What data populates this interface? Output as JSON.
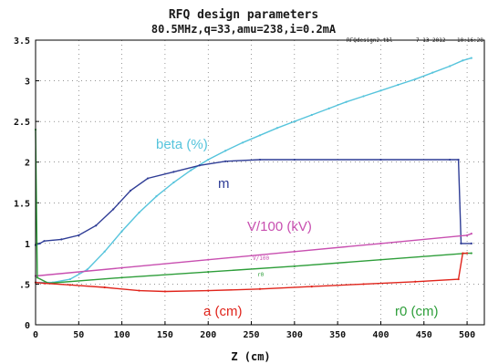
{
  "chart_data": {
    "type": "line",
    "title": "RFQ design parameters",
    "subtitle": "80.5MHz,q=33,amu=238,i=0.2mA",
    "stamp_file": "RFQdesign2.tbl",
    "stamp_date": "7-13-2012",
    "stamp_time": "10:16:28",
    "xlabel": "Z (cm)",
    "ylabel": "",
    "xlim": [
      0,
      520
    ],
    "ylim": [
      0,
      3.5
    ],
    "xticks": [
      "0",
      "50",
      "100",
      "150",
      "200",
      "250",
      "300",
      "350",
      "400",
      "450",
      "500"
    ],
    "yticks": [
      "0",
      ".5",
      "1",
      "1.5",
      "2",
      "2.5",
      "3",
      "3.5"
    ],
    "grid": true,
    "series": [
      {
        "name": "beta (%)",
        "color": "#56c4dc",
        "points": [
          [
            0,
            0.52
          ],
          [
            20,
            0.52
          ],
          [
            40,
            0.56
          ],
          [
            60,
            0.68
          ],
          [
            80,
            0.9
          ],
          [
            100,
            1.15
          ],
          [
            120,
            1.38
          ],
          [
            140,
            1.58
          ],
          [
            160,
            1.75
          ],
          [
            180,
            1.9
          ],
          [
            200,
            2.03
          ],
          [
            220,
            2.14
          ],
          [
            240,
            2.24
          ],
          [
            260,
            2.33
          ],
          [
            280,
            2.42
          ],
          [
            300,
            2.5
          ],
          [
            320,
            2.58
          ],
          [
            340,
            2.66
          ],
          [
            360,
            2.74
          ],
          [
            380,
            2.81
          ],
          [
            400,
            2.88
          ],
          [
            420,
            2.95
          ],
          [
            440,
            3.02
          ],
          [
            460,
            3.1
          ],
          [
            480,
            3.18
          ],
          [
            495,
            3.25
          ],
          [
            505,
            3.28
          ]
        ]
      },
      {
        "name": "m",
        "color": "#2f3d96",
        "points": [
          [
            0,
            0.98
          ],
          [
            5,
            1.0
          ],
          [
            10,
            1.03
          ],
          [
            30,
            1.05
          ],
          [
            50,
            1.1
          ],
          [
            70,
            1.22
          ],
          [
            90,
            1.42
          ],
          [
            110,
            1.65
          ],
          [
            130,
            1.8
          ],
          [
            160,
            1.88
          ],
          [
            190,
            1.96
          ],
          [
            220,
            2.01
          ],
          [
            260,
            2.03
          ],
          [
            300,
            2.03
          ],
          [
            400,
            2.03
          ],
          [
            480,
            2.03
          ],
          [
            490,
            2.03
          ],
          [
            493,
            1.0
          ],
          [
            505,
            1.0
          ]
        ]
      },
      {
        "name": "V/100 (kV)",
        "color": "#c84fb0",
        "points": [
          [
            0,
            0.6
          ],
          [
            100,
            0.7
          ],
          [
            200,
            0.8
          ],
          [
            300,
            0.9
          ],
          [
            400,
            1.0
          ],
          [
            500,
            1.1
          ],
          [
            505,
            1.12
          ]
        ]
      },
      {
        "name": "r0 (cm)",
        "color": "#2e9e3a",
        "points": [
          [
            0,
            2.4
          ],
          [
            2,
            0.58
          ],
          [
            15,
            0.51
          ],
          [
            100,
            0.58
          ],
          [
            200,
            0.65
          ],
          [
            300,
            0.72
          ],
          [
            400,
            0.8
          ],
          [
            500,
            0.88
          ],
          [
            505,
            0.88
          ]
        ]
      },
      {
        "name": "a (cm)",
        "color": "#e0241b",
        "points": [
          [
            0,
            0.52
          ],
          [
            10,
            0.51
          ],
          [
            40,
            0.49
          ],
          [
            80,
            0.46
          ],
          [
            120,
            0.42
          ],
          [
            150,
            0.41
          ],
          [
            200,
            0.42
          ],
          [
            260,
            0.44
          ],
          [
            320,
            0.47
          ],
          [
            380,
            0.5
          ],
          [
            440,
            0.53
          ],
          [
            490,
            0.56
          ],
          [
            495,
            0.88
          ],
          [
            500,
            0.88
          ]
        ]
      }
    ],
    "annotations": {
      "beta": "beta (%)",
      "m": "m",
      "v100": "V/100 (kV)",
      "v100_small": "V/100",
      "r0_small": "r0",
      "a": "a (cm)",
      "r0": "r0 (cm)"
    }
  }
}
